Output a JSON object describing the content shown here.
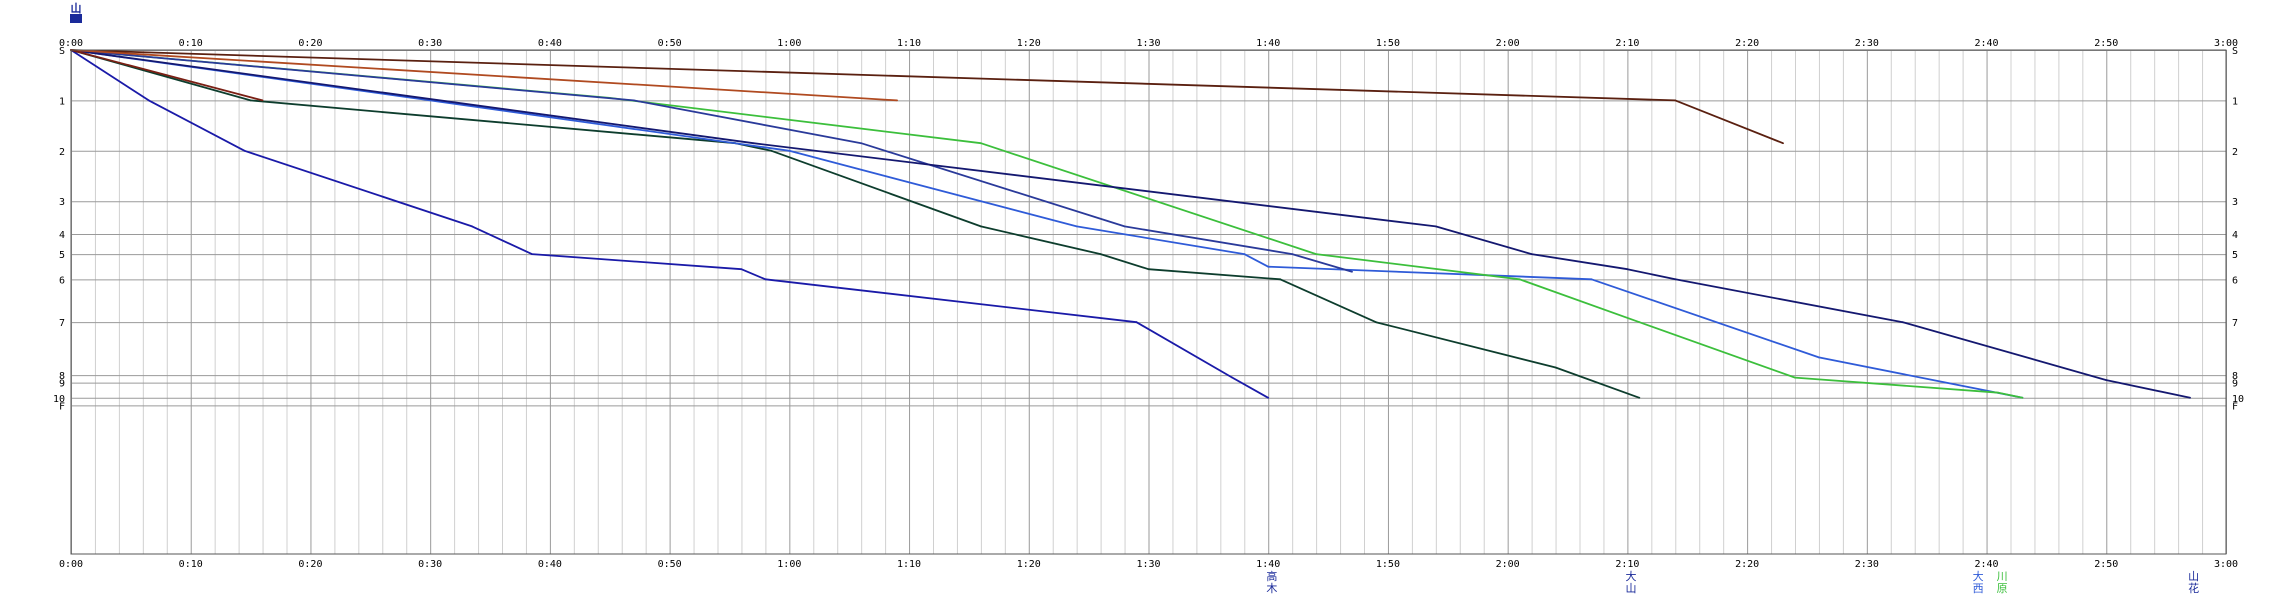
{
  "chart_data": {
    "type": "line",
    "title": "",
    "xlabel": "",
    "ylabel": "",
    "xlim": [
      0,
      180
    ],
    "ylim": [
      0,
      10
    ],
    "grid": true,
    "origin_label": "山",
    "x_tick_labels": [
      "0:00",
      "0:10",
      "0:20",
      "0:30",
      "0:40",
      "0:50",
      "1:00",
      "1:10",
      "1:20",
      "1:30",
      "1:40",
      "1:50",
      "2:00",
      "2:10",
      "2:20",
      "2:30",
      "2:40",
      "2:50",
      "3:00"
    ],
    "stations": [
      {
        "label": "S",
        "pos": 0
      },
      {
        "label": "1",
        "pos": 1
      },
      {
        "label": "2",
        "pos": 2
      },
      {
        "label": "3",
        "pos": 3
      },
      {
        "label": "4",
        "pos": 3.65
      },
      {
        "label": "5",
        "pos": 4.05
      },
      {
        "label": "6",
        "pos": 4.55
      },
      {
        "label": "7",
        "pos": 5.4
      },
      {
        "label": "8",
        "pos": 6.45
      },
      {
        "label": "9",
        "pos": 6.6
      },
      {
        "label": "10",
        "pos": 6.9
      },
      {
        "label": "F",
        "pos": 7.05
      }
    ],
    "end_labels": [
      {
        "text": "高木",
        "x": 100.3,
        "color": "#1a2a9a"
      },
      {
        "text": "大山",
        "x": 130.3,
        "color": "#1a2a9a"
      },
      {
        "text": "大西",
        "x": 159.3,
        "color": "#2f5bd8"
      },
      {
        "text": "川原",
        "x": 161.3,
        "color": "#3cbf3c"
      },
      {
        "text": "山花",
        "x": 177.3,
        "color": "#1a2a9a"
      }
    ],
    "series": [
      {
        "color": "#1a1aa8",
        "points": [
          [
            0,
            0
          ],
          [
            6.5,
            1
          ],
          [
            14.5,
            2
          ],
          [
            33.5,
            3.5
          ],
          [
            38.5,
            4.05
          ],
          [
            56,
            4.35
          ],
          [
            58,
            4.55
          ],
          [
            89,
            5.4
          ],
          [
            97,
            6.5
          ],
          [
            100,
            6.9
          ]
        ]
      },
      {
        "color": "#0d3d2d",
        "points": [
          [
            0,
            0
          ],
          [
            15,
            1
          ],
          [
            55.5,
            1.85
          ],
          [
            58.5,
            2
          ],
          [
            76,
            3.5
          ],
          [
            86,
            4.05
          ],
          [
            90,
            4.35
          ],
          [
            101,
            4.55
          ],
          [
            109,
            5.4
          ],
          [
            124,
            6.3
          ],
          [
            131,
            6.9
          ]
        ]
      },
      {
        "color": "#2f5bd8",
        "points": [
          [
            0,
            0
          ],
          [
            60,
            2
          ],
          [
            84,
            3.5
          ],
          [
            98,
            4.05
          ],
          [
            100,
            4.3
          ],
          [
            127,
            4.55
          ],
          [
            146,
            6.1
          ],
          [
            163,
            6.9
          ]
        ]
      },
      {
        "color": "#3cbf3c",
        "points": [
          [
            0,
            0
          ],
          [
            45,
            0.95
          ],
          [
            76,
            1.85
          ],
          [
            104,
            4.05
          ],
          [
            121,
            4.55
          ],
          [
            131,
            5.4
          ],
          [
            144,
            6.5
          ],
          [
            161,
            6.8
          ],
          [
            163,
            6.9
          ]
        ]
      },
      {
        "color": "#2a3a9a",
        "points": [
          [
            0,
            0
          ],
          [
            47,
            1
          ],
          [
            66,
            1.85
          ],
          [
            88,
            3.5
          ],
          [
            102,
            4.05
          ],
          [
            107,
            4.4
          ]
        ]
      },
      {
        "color": "#141870",
        "points": [
          [
            0,
            0
          ],
          [
            57,
            1.85
          ],
          [
            114,
            3.5
          ],
          [
            122,
            4.05
          ],
          [
            130,
            4.35
          ],
          [
            134,
            4.55
          ],
          [
            153,
            5.4
          ],
          [
            170,
            6.55
          ],
          [
            177,
            6.9
          ]
        ]
      },
      {
        "color": "#5a2010",
        "points": [
          [
            0,
            0
          ],
          [
            134,
            1
          ],
          [
            143,
            1.85
          ]
        ]
      },
      {
        "color": "#b04a20",
        "points": [
          [
            0,
            0
          ],
          [
            69,
            1
          ]
        ]
      },
      {
        "color": "#7a1f14",
        "points": [
          [
            0,
            0
          ],
          [
            16,
            1
          ]
        ]
      }
    ]
  }
}
